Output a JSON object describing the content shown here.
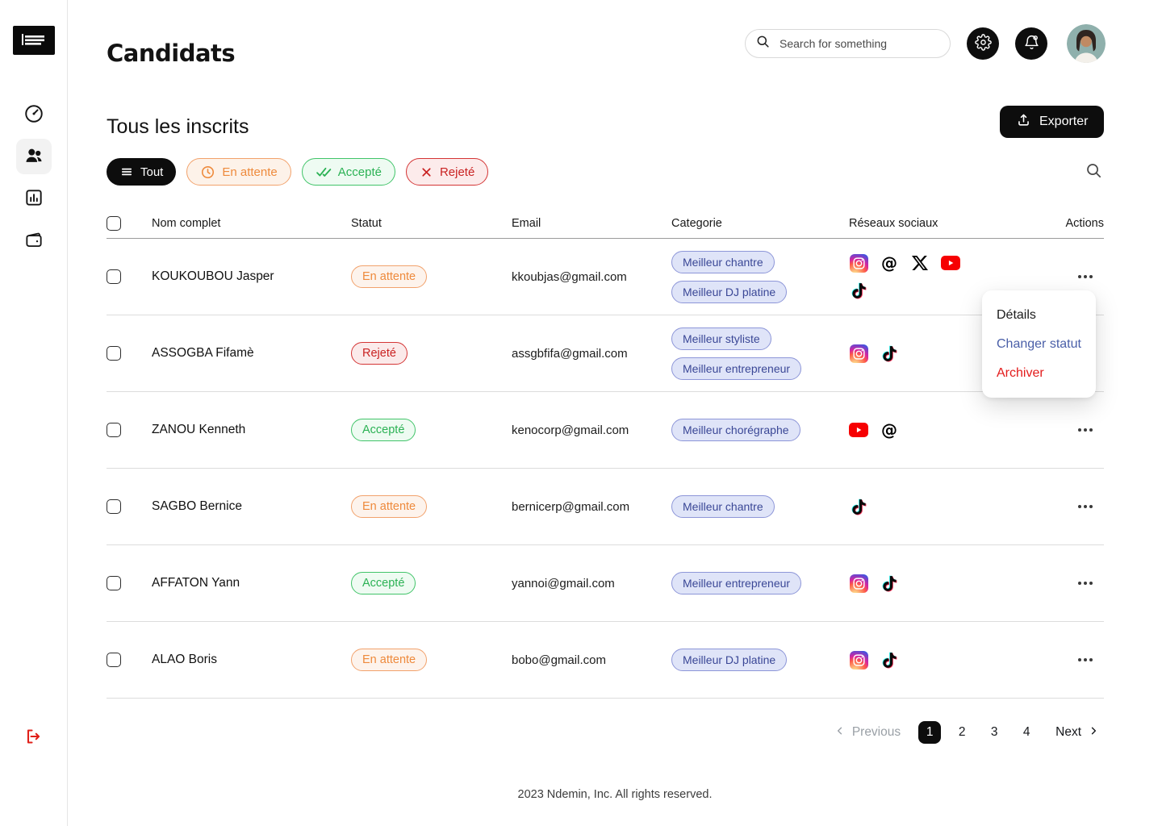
{
  "header": {
    "app_title": "Candidats",
    "search_placeholder": "Search for something"
  },
  "page": {
    "heading": "Tous les inscrits",
    "export_label": "Exporter"
  },
  "filters": [
    {
      "id": "all",
      "label": "Tout",
      "icon": "filter-lines-icon",
      "active": true
    },
    {
      "id": "pending",
      "label": "En attente",
      "icon": "clock-icon"
    },
    {
      "id": "accepted",
      "label": "Accepté",
      "icon": "double-check-icon"
    },
    {
      "id": "rejected",
      "label": "Rejeté",
      "icon": "x-mark-icon"
    }
  ],
  "table": {
    "columns": [
      "Nom complet",
      "Statut",
      "Email",
      "Categorie",
      "Réseaux sociaux",
      "Actions"
    ],
    "rows": [
      {
        "name": "KOUKOUBOU Jasper",
        "status": {
          "label": "En attente",
          "type": "pending"
        },
        "email": "kkoubjas@gmail.com",
        "categories": [
          "Meilleur chantre",
          "Meilleur DJ platine"
        ],
        "socials": [
          "instagram",
          "threads",
          "x",
          "youtube",
          "tiktok"
        ],
        "menu_open": true
      },
      {
        "name": "ASSOGBA Fifamè",
        "status": {
          "label": "Rejeté",
          "type": "rejected"
        },
        "email": "assgbfifa@gmail.com",
        "categories": [
          "Meilleur styliste",
          "Meilleur entrepreneur"
        ],
        "socials": [
          "instagram",
          "tiktok"
        ]
      },
      {
        "name": "ZANOU Kenneth",
        "status": {
          "label": "Accepté",
          "type": "accepted"
        },
        "email": "kenocorp@gmail.com",
        "categories": [
          "Meilleur chorégraphe"
        ],
        "socials": [
          "youtube",
          "threads"
        ]
      },
      {
        "name": "SAGBO Bernice",
        "status": {
          "label": "En attente",
          "type": "pending"
        },
        "email": "bernicerp@gmail.com",
        "categories": [
          "Meilleur chantre"
        ],
        "socials": [
          "tiktok"
        ]
      },
      {
        "name": "AFFATON Yann",
        "status": {
          "label": "Accepté",
          "type": "accepted"
        },
        "email": "yannoi@gmail.com",
        "categories": [
          "Meilleur entrepreneur"
        ],
        "socials": [
          "instagram",
          "tiktok"
        ]
      },
      {
        "name": "ALAO Boris",
        "status": {
          "label": "En attente",
          "type": "pending"
        },
        "email": "bobo@gmail.com",
        "categories": [
          "Meilleur DJ platine"
        ],
        "socials": [
          "instagram",
          "tiktok"
        ]
      }
    ]
  },
  "context_menu": {
    "items": [
      {
        "id": "details",
        "label": "Détails",
        "color": "#1c1c1c"
      },
      {
        "id": "change-status",
        "label": "Changer statut",
        "color": "#4a5fa8"
      },
      {
        "id": "archive",
        "label": "Archiver",
        "color": "#e31b1b"
      }
    ]
  },
  "pagination": {
    "previous_label": "Previous",
    "pages": [
      "1",
      "2",
      "3",
      "4"
    ],
    "active_page": "1",
    "next_label": "Next"
  },
  "footer": {
    "copyright": "2023 Ndemin, Inc. All rights reserved."
  },
  "colors": {
    "accent_dark": "#0d0d0d",
    "status_pending": "#ee8a3c",
    "status_accepted": "#2bb254",
    "status_rejected": "#c92222",
    "category_text": "#3a4796",
    "category_bg": "#dfe4f8",
    "menu_link_blue": "#4a5fa8",
    "menu_danger_red": "#e31b1b",
    "logout_red": "#e02019"
  }
}
